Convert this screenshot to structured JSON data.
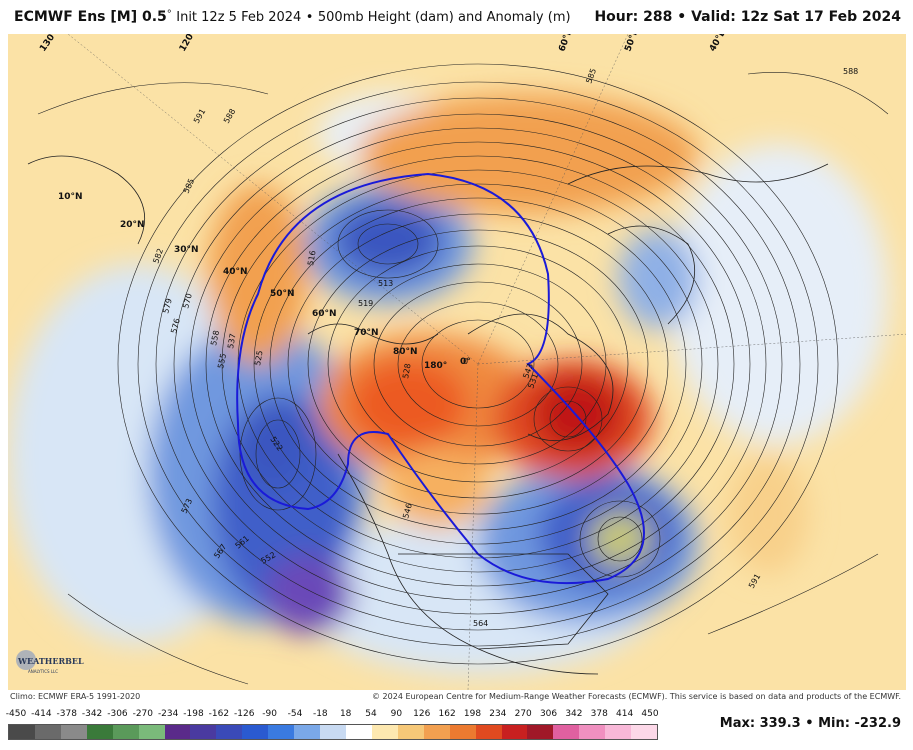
{
  "header": {
    "model": "ECMWF Ens [M] 0.5",
    "degree": "°",
    "init": "Init 12z 5 Feb 2024",
    "bullet": "•",
    "field": "500mb Height (dam) and Anomaly (m)",
    "hour_label": "Hour:",
    "hour": "288",
    "valid_label": "Valid:",
    "valid": "12z Sat 17 Feb 2024"
  },
  "map": {
    "lat_labels": [
      "10°N",
      "20°N",
      "30°N",
      "40°N",
      "50°N",
      "60°N",
      "70°N",
      "80°N"
    ],
    "lon_labels": [
      "130°E",
      "120°E",
      "180°",
      "0°",
      "60°E",
      "50°E",
      "40°E"
    ],
    "contour_labels": [
      "591",
      "588",
      "585",
      "582",
      "579",
      "576",
      "570",
      "564",
      "558",
      "555",
      "552",
      "546",
      "543",
      "537",
      "531",
      "528",
      "525",
      "522",
      "519",
      "516",
      "513",
      "567",
      "573",
      "561",
      "0"
    ],
    "logo_text": "WEATHERBELL",
    "logo_sub": "ANALYTICS LLC"
  },
  "credits": {
    "climo": "Climo: ECMWF ERA-5 1991-2020",
    "copyright": "© 2024 European Centre for Medium-Range Weather Forecasts (ECMWF). This service is based on data and products of the ECMWF."
  },
  "colorbar": {
    "ticks": [
      "-450",
      "-414",
      "-378",
      "-342",
      "-306",
      "-270",
      "-234",
      "-198",
      "-162",
      "-126",
      "-90",
      "-54",
      "-18",
      "18",
      "54",
      "90",
      "126",
      "162",
      "198",
      "234",
      "270",
      "306",
      "342",
      "378",
      "414",
      "450"
    ],
    "colors": [
      "#4a4a4a",
      "#6a6a6a",
      "#8a8a8a",
      "#3a7a3a",
      "#5a9a5a",
      "#7aba7a",
      "#5a2a8a",
      "#4a3aa0",
      "#3a4ab8",
      "#2a5ad0",
      "#3a7ae0",
      "#7aa8e8",
      "#c8daf2",
      "#ffffff",
      "#fde8b0",
      "#f6c878",
      "#f2a050",
      "#ec7a30",
      "#e04a20",
      "#c82020",
      "#a01828",
      "#e060a0",
      "#f090c0",
      "#f8b8d8",
      "#fcd8e8"
    ]
  },
  "stats": {
    "max_label": "Max:",
    "max": "339.3",
    "sep": "•",
    "min_label": "Min:",
    "min": "-232.9"
  }
}
